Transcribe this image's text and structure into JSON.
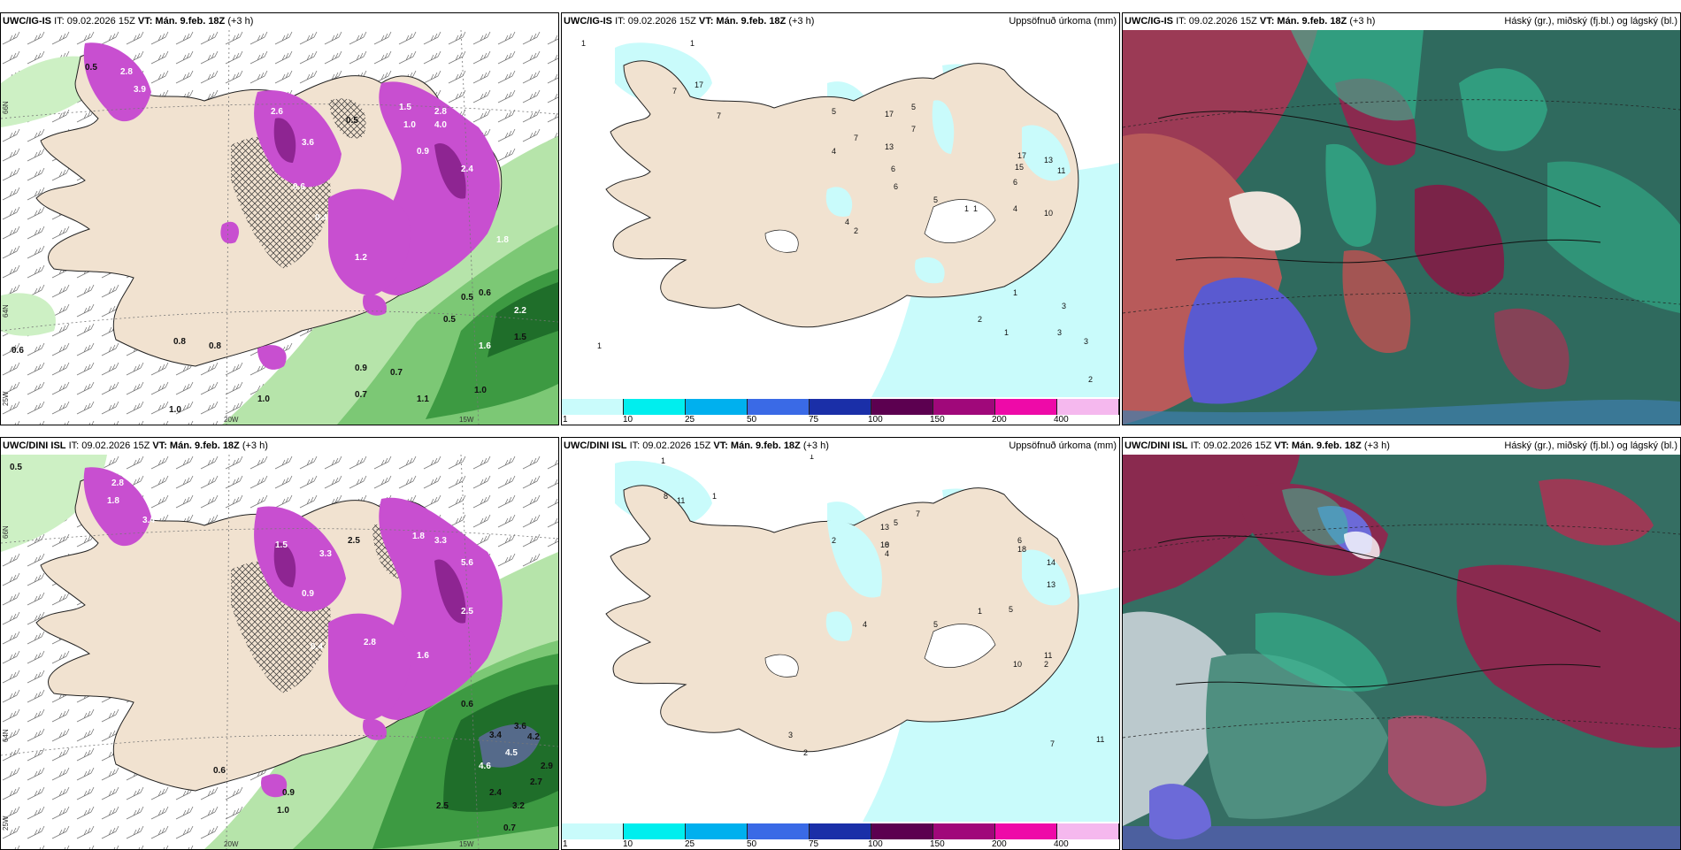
{
  "panels": [
    {
      "model": "UWC/IG-IS",
      "it": "IT: 09.02.2026 15Z",
      "vt": "VT: Mán. 9.feb. 18Z",
      "offset": "(+3 h)",
      "right_label": ""
    },
    {
      "model": "UWC/IG-IS",
      "it": "IT: 09.02.2026 15Z",
      "vt": "VT: Mán. 9.feb. 18Z",
      "offset": "(+3 h)",
      "right_label": "Uppsöfnuð úrkoma (mm)"
    },
    {
      "model": "UWC/IG-IS",
      "it": "IT: 09.02.2026 15Z",
      "vt": "VT: Mán. 9.feb. 18Z",
      "offset": "(+3 h)",
      "right_label": "Háský (gr.), miðský (fj.bl.) og lágský (bl.)"
    },
    {
      "model": "UWC/DINI ISL",
      "it": "IT: 09.02.2026 15Z",
      "vt": "VT: Mán. 9.feb. 18Z",
      "offset": "(+3 h)",
      "right_label": ""
    },
    {
      "model": "UWC/DINI ISL",
      "it": "IT: 09.02.2026 15Z",
      "vt": "VT: Mán. 9.feb. 18Z",
      "offset": "(+3 h)",
      "right_label": "Uppsöfnuð úrkoma (mm)"
    },
    {
      "model": "UWC/DINI ISL",
      "it": "IT: 09.02.2026 15Z",
      "vt": "VT: Mán. 9.feb. 18Z",
      "offset": "(+3 h)",
      "right_label": "Háský (gr.), miðský (fj.bl.) og lágský (bl.)"
    }
  ],
  "axis_labels": {
    "lat66": "66N",
    "lat64": "64N",
    "lon25": "25W",
    "lon20": "20W",
    "lon15": "15W"
  },
  "colorbar": {
    "ticks": [
      "1",
      "10",
      "25",
      "50",
      "75",
      "100",
      "150",
      "200",
      "400"
    ],
    "colors": [
      "#c9fbfb",
      "#00eeee",
      "#00b0ee",
      "#3a6ae6",
      "#1a2fa8",
      "#5c0050",
      "#a0087a",
      "#ee0aa8",
      "#f5b8ee"
    ]
  },
  "precip_labels_top": [
    "0.5",
    "2.8",
    "3.9",
    "2.6",
    "3.6",
    "0.5",
    "1.5",
    "1.0",
    "4.0",
    "2.8",
    "0.9",
    "2.4",
    "1.2",
    "0.4",
    "0.6",
    "0.8",
    "0.6",
    "1.0",
    "0.9",
    "0.7",
    "0.5",
    "0.5",
    "1.6",
    "2.2",
    "0.6",
    "0.7",
    "0.8",
    "1.0",
    "1.1",
    "1.8",
    "1.5",
    "1.0"
  ],
  "precip_labels_bottom": [
    "0.5",
    "2.8",
    "1.8",
    "3.4",
    "1.5",
    "3.3",
    "2.5",
    "0.9",
    "1.8",
    "3.3",
    "5.6",
    "0.4",
    "2.8",
    "1.6",
    "2.5",
    "0.6",
    "3.4",
    "4.6",
    "3.6",
    "4.2",
    "4.5",
    "2.9",
    "2.4",
    "2.7",
    "3.2",
    "2.5",
    "0.7",
    "0.6",
    "1.0",
    "0.9"
  ],
  "accum_labels_top": [
    "1",
    "1",
    "7",
    "17",
    "7",
    "5",
    "17",
    "5",
    "4",
    "7",
    "13",
    "6",
    "6",
    "7",
    "17",
    "15",
    "13",
    "11",
    "6",
    "10",
    "5",
    "1",
    "1",
    "4",
    "2",
    "4",
    "2",
    "3",
    "1",
    "1",
    "3",
    "3",
    "2",
    "1"
  ],
  "accum_labels_bottom": [
    "1",
    "1",
    "11",
    "1",
    "8",
    "2",
    "5",
    "13",
    "4",
    "8",
    "10",
    "7",
    "18",
    "14",
    "13",
    "6",
    "5",
    "1",
    "5",
    "4",
    "3",
    "11",
    "10",
    "2",
    "7",
    "11",
    "2"
  ]
}
